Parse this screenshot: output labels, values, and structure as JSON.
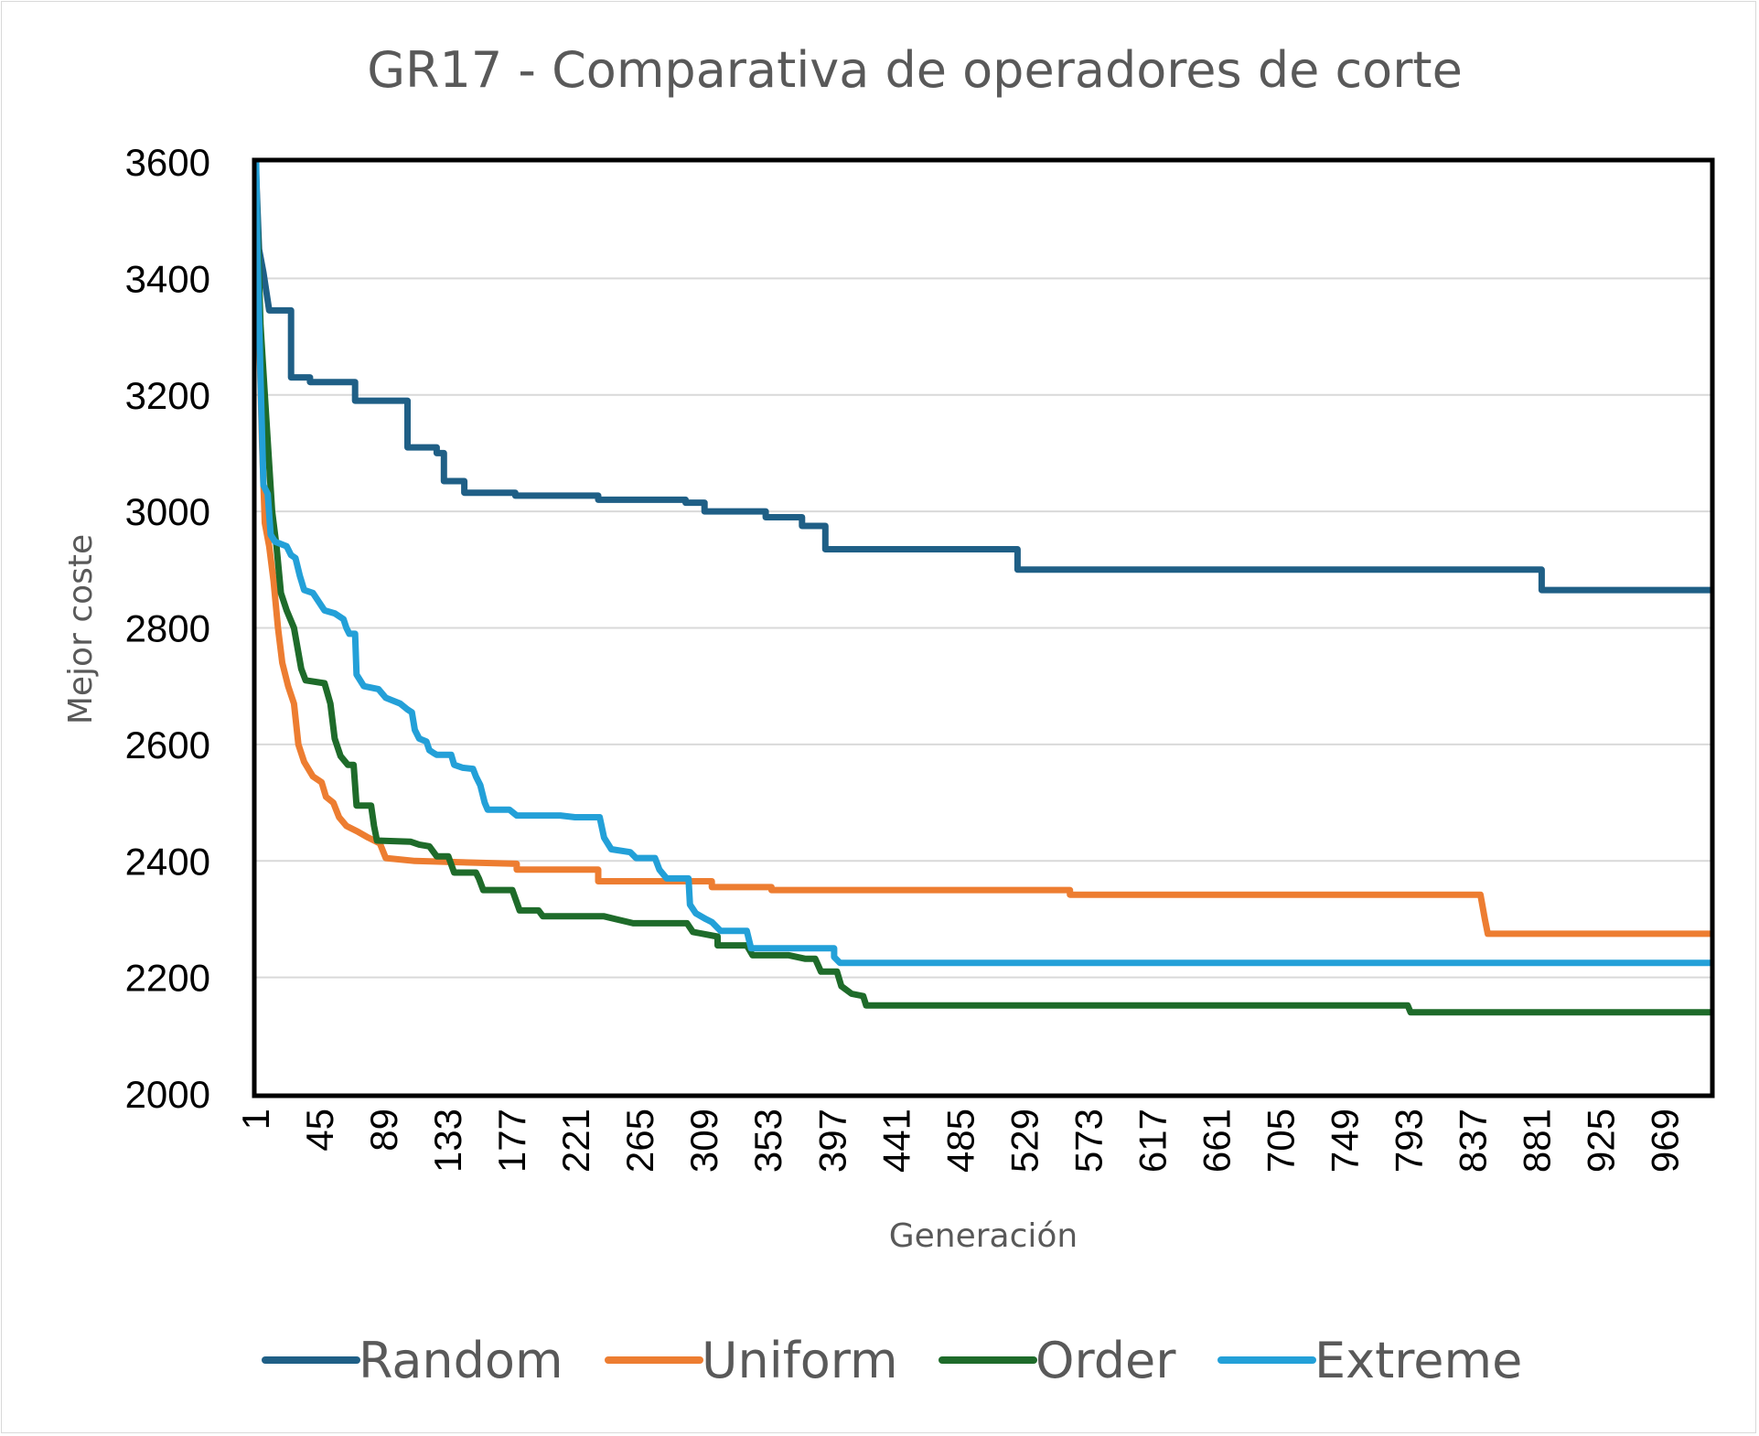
{
  "chart_data": {
    "type": "line",
    "title": "GR17 - Comparativa de operadores de corte",
    "xlabel": "Generación",
    "ylabel": "Mejor coste",
    "xlim": [
      1,
      1000
    ],
    "ylim": [
      2000,
      3600
    ],
    "yticks": [
      "2000",
      "2200",
      "2400",
      "2600",
      "2800",
      "3000",
      "3200",
      "3400",
      "3600"
    ],
    "xticks": [
      "1",
      "45",
      "89",
      "133",
      "177",
      "221",
      "265",
      "309",
      "353",
      "397",
      "441",
      "485",
      "529",
      "573",
      "617",
      "661",
      "705",
      "749",
      "793",
      "837",
      "881",
      "925",
      "969"
    ],
    "grid": true,
    "legend_position": "bottom",
    "series": [
      {
        "name": "Random",
        "color": "#1f5f86",
        "points": [
          [
            1,
            3580
          ],
          [
            3,
            3450
          ],
          [
            6,
            3410
          ],
          [
            10,
            3345
          ],
          [
            25,
            3345
          ],
          [
            25,
            3230
          ],
          [
            38,
            3230
          ],
          [
            38,
            3222
          ],
          [
            69,
            3222
          ],
          [
            69,
            3190
          ],
          [
            105,
            3190
          ],
          [
            105,
            3110
          ],
          [
            125,
            3110
          ],
          [
            125,
            3100
          ],
          [
            130,
            3100
          ],
          [
            130,
            3052
          ],
          [
            144,
            3052
          ],
          [
            144,
            3032
          ],
          [
            179,
            3032
          ],
          [
            179,
            3027
          ],
          [
            236,
            3027
          ],
          [
            236,
            3020
          ],
          [
            296,
            3020
          ],
          [
            296,
            3015
          ],
          [
            309,
            3015
          ],
          [
            309,
            3000
          ],
          [
            351,
            3000
          ],
          [
            351,
            2990
          ],
          [
            376,
            2990
          ],
          [
            376,
            2975
          ],
          [
            392,
            2975
          ],
          [
            392,
            2935
          ],
          [
            524,
            2935
          ],
          [
            524,
            2900
          ],
          [
            884,
            2900
          ],
          [
            884,
            2865
          ],
          [
            1000,
            2865
          ]
        ]
      },
      {
        "name": "Uniform",
        "color": "#ed7d31",
        "points": [
          [
            1,
            3560
          ],
          [
            3,
            3320
          ],
          [
            5,
            3120
          ],
          [
            7,
            2980
          ],
          [
            10,
            2940
          ],
          [
            13,
            2880
          ],
          [
            16,
            2800
          ],
          [
            19,
            2740
          ],
          [
            23,
            2700
          ],
          [
            27,
            2670
          ],
          [
            30,
            2600
          ],
          [
            34,
            2570
          ],
          [
            40,
            2545
          ],
          [
            46,
            2535
          ],
          [
            49,
            2510
          ],
          [
            54,
            2500
          ],
          [
            58,
            2475
          ],
          [
            63,
            2460
          ],
          [
            71,
            2450
          ],
          [
            78,
            2440
          ],
          [
            86,
            2430
          ],
          [
            90,
            2405
          ],
          [
            110,
            2400
          ],
          [
            180,
            2395
          ],
          [
            180,
            2385
          ],
          [
            236,
            2385
          ],
          [
            236,
            2365
          ],
          [
            314,
            2365
          ],
          [
            314,
            2355
          ],
          [
            355,
            2355
          ],
          [
            355,
            2350
          ],
          [
            560,
            2350
          ],
          [
            560,
            2342
          ],
          [
            842,
            2342
          ],
          [
            845,
            2300
          ],
          [
            847,
            2275
          ],
          [
            1000,
            2275
          ]
        ]
      },
      {
        "name": "Order",
        "color": "#1e6b2a",
        "points": [
          [
            1,
            3560
          ],
          [
            4,
            3320
          ],
          [
            8,
            3160
          ],
          [
            12,
            3000
          ],
          [
            15,
            2940
          ],
          [
            18,
            2860
          ],
          [
            22,
            2830
          ],
          [
            27,
            2800
          ],
          [
            32,
            2730
          ],
          [
            35,
            2710
          ],
          [
            48,
            2705
          ],
          [
            52,
            2670
          ],
          [
            55,
            2610
          ],
          [
            59,
            2580
          ],
          [
            64,
            2565
          ],
          [
            68,
            2565
          ],
          [
            70,
            2495
          ],
          [
            80,
            2495
          ],
          [
            82,
            2460
          ],
          [
            84,
            2435
          ],
          [
            107,
            2433
          ],
          [
            113,
            2428
          ],
          [
            120,
            2425
          ],
          [
            125,
            2408
          ],
          [
            133,
            2408
          ],
          [
            137,
            2380
          ],
          [
            152,
            2380
          ],
          [
            154,
            2370
          ],
          [
            157,
            2350
          ],
          [
            177,
            2350
          ],
          [
            182,
            2315
          ],
          [
            195,
            2315
          ],
          [
            198,
            2305
          ],
          [
            240,
            2305
          ],
          [
            248,
            2300
          ],
          [
            260,
            2293
          ],
          [
            297,
            2293
          ],
          [
            301,
            2278
          ],
          [
            318,
            2270
          ],
          [
            318,
            2255
          ],
          [
            338,
            2255
          ],
          [
            342,
            2238
          ],
          [
            367,
            2238
          ],
          [
            378,
            2232
          ],
          [
            385,
            2232
          ],
          [
            389,
            2210
          ],
          [
            400,
            2210
          ],
          [
            403,
            2185
          ],
          [
            410,
            2172
          ],
          [
            418,
            2168
          ],
          [
            420,
            2152
          ],
          [
            792,
            2152
          ],
          [
            794,
            2140
          ],
          [
            1000,
            2140
          ]
        ]
      },
      {
        "name": "Extreme",
        "color": "#23a0d8",
        "points": [
          [
            1,
            3600
          ],
          [
            2,
            3440
          ],
          [
            4,
            3230
          ],
          [
            6,
            3045
          ],
          [
            9,
            3030
          ],
          [
            11,
            2960
          ],
          [
            14,
            2948
          ],
          [
            22,
            2940
          ],
          [
            25,
            2925
          ],
          [
            28,
            2920
          ],
          [
            31,
            2890
          ],
          [
            34,
            2865
          ],
          [
            40,
            2860
          ],
          [
            44,
            2845
          ],
          [
            48,
            2830
          ],
          [
            55,
            2825
          ],
          [
            61,
            2815
          ],
          [
            63,
            2800
          ],
          [
            65,
            2790
          ],
          [
            69,
            2790
          ],
          [
            70,
            2720
          ],
          [
            75,
            2700
          ],
          [
            85,
            2695
          ],
          [
            90,
            2680
          ],
          [
            100,
            2670
          ],
          [
            105,
            2660
          ],
          [
            108,
            2655
          ],
          [
            110,
            2625
          ],
          [
            113,
            2610
          ],
          [
            118,
            2605
          ],
          [
            120,
            2590
          ],
          [
            123,
            2585
          ],
          [
            125,
            2582
          ],
          [
            135,
            2582
          ],
          [
            137,
            2565
          ],
          [
            143,
            2560
          ],
          [
            150,
            2558
          ],
          [
            152,
            2545
          ],
          [
            155,
            2530
          ],
          [
            158,
            2500
          ],
          [
            160,
            2488
          ],
          [
            175,
            2488
          ],
          [
            180,
            2478
          ],
          [
            210,
            2478
          ],
          [
            220,
            2475
          ],
          [
            237,
            2475
          ],
          [
            240,
            2440
          ],
          [
            245,
            2420
          ],
          [
            258,
            2415
          ],
          [
            262,
            2405
          ],
          [
            275,
            2405
          ],
          [
            278,
            2385
          ],
          [
            283,
            2370
          ],
          [
            298,
            2370
          ],
          [
            299,
            2325
          ],
          [
            303,
            2310
          ],
          [
            310,
            2300
          ],
          [
            314,
            2295
          ],
          [
            320,
            2280
          ],
          [
            338,
            2280
          ],
          [
            341,
            2250
          ],
          [
            398,
            2250
          ],
          [
            398,
            2235
          ],
          [
            402,
            2225
          ],
          [
            1000,
            2225
          ]
        ]
      }
    ]
  }
}
